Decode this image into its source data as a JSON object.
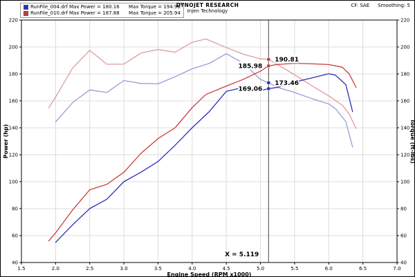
{
  "header": {
    "title": "DYNOJET RESEARCH",
    "subtitle": "Injen Technology",
    "cf_label": "CF: SAE",
    "smoothing_label": "Smoothing: 5"
  },
  "legend": {
    "items": [
      {
        "color": "#2c2cbf",
        "file": "RunFile_004.drf",
        "max_power_label": "Max Power = 180.16",
        "max_torque_label": "Max Torque = 194.96"
      },
      {
        "color": "#c83c3c",
        "file": "RunFile_010.drf",
        "max_power_label": "Max Power = 187.88",
        "max_torque_label": "Max Torque = 205.94"
      }
    ]
  },
  "chart_data": {
    "type": "line",
    "title": "DYNOJET RESEARCH - Injen Technology",
    "xlabel": "Engine Speed (RPM x1000)",
    "ylabel_left": "Power (hp)",
    "ylabel_right": "Torque (ft-lbs)",
    "xlim": [
      1.5,
      7.0
    ],
    "ylim": [
      40,
      220
    ],
    "grid": true,
    "legend_position": "top-left",
    "x_ticks": [
      "1.5",
      "2.0",
      "2.5",
      "3.0",
      "3.5",
      "4.0",
      "4.5",
      "5.0",
      "5.5",
      "6.0",
      "6.5",
      "7.0"
    ],
    "y_ticks": [
      40,
      60,
      80,
      100,
      120,
      140,
      160,
      180,
      200,
      220
    ],
    "cursor": {
      "x": 5.119,
      "label": "X = 5.119"
    },
    "series": [
      {
        "id": "torque-010",
        "name": "RunFile_010 Torque (ft-lbs)",
        "color": "#e09a9a",
        "x": [
          1.9,
          2.0,
          2.25,
          2.5,
          2.75,
          3.0,
          3.25,
          3.5,
          3.75,
          4.0,
          4.2,
          4.5,
          4.75,
          5.0,
          5.119,
          5.25,
          5.5,
          5.75,
          6.0,
          6.2,
          6.3,
          6.4
        ],
        "y": [
          154.8,
          162.8,
          184.4,
          197.5,
          187.2,
          187.3,
          195.5,
          198.1,
          196.1,
          203.5,
          205.94,
          199.6,
          194.6,
          191.2,
          190.81,
          187.0,
          179.4,
          171.3,
          163.7,
          156.7,
          150.1,
          139.5
        ]
      },
      {
        "id": "torque-004",
        "name": "RunFile_004 Torque (ft-lbs)",
        "color": "#9a9ad8",
        "x": [
          2.0,
          2.25,
          2.5,
          2.75,
          3.0,
          3.25,
          3.5,
          3.75,
          4.0,
          4.25,
          4.5,
          4.75,
          5.0,
          5.119,
          5.25,
          5.5,
          5.75,
          6.0,
          6.1,
          6.25,
          6.35
        ],
        "y": [
          144.4,
          158.7,
          168.1,
          166.2,
          175.1,
          172.9,
          172.6,
          177.9,
          183.8,
          187.8,
          194.96,
          188.0,
          175.9,
          173.46,
          170.0,
          166.2,
          161.7,
          157.7,
          154.1,
          144.6,
          125.7
        ]
      },
      {
        "id": "power-010",
        "name": "RunFile_010 Power (hp)",
        "color": "#c83c3c",
        "x": [
          1.9,
          2.0,
          2.25,
          2.5,
          2.75,
          3.0,
          3.25,
          3.5,
          3.75,
          4.0,
          4.2,
          4.5,
          4.75,
          5.0,
          5.119,
          5.25,
          5.5,
          5.75,
          6.0,
          6.2,
          6.3,
          6.4
        ],
        "y": [
          56,
          62,
          79,
          94,
          98,
          107,
          121,
          132,
          140,
          155,
          164.7,
          171,
          176,
          182,
          185.98,
          187,
          187.88,
          187.5,
          187,
          185,
          180,
          170
        ]
      },
      {
        "id": "power-004",
        "name": "RunFile_004 Power (hp)",
        "color": "#2c2cbf",
        "x": [
          2.0,
          2.25,
          2.5,
          2.75,
          3.0,
          3.25,
          3.5,
          3.75,
          4.0,
          4.25,
          4.5,
          4.75,
          5.0,
          5.119,
          5.25,
          5.5,
          5.75,
          6.0,
          6.1,
          6.25,
          6.35
        ],
        "y": [
          55,
          68,
          80,
          87,
          100,
          107,
          115,
          127,
          140,
          152,
          167,
          170,
          167.5,
          169.06,
          170,
          174,
          177,
          180.16,
          179,
          172,
          152
        ]
      }
    ],
    "markers": [
      {
        "x": 5.119,
        "value": 185.98,
        "label": "185.98",
        "color": "#c83c3c",
        "side": "left"
      },
      {
        "x": 5.119,
        "value": 190.81,
        "label": "190.81",
        "color": "#c83c3c",
        "side": "right"
      },
      {
        "x": 5.119,
        "value": 169.06,
        "label": "169.06",
        "color": "#2c2cbf",
        "side": "left"
      },
      {
        "x": 5.119,
        "value": 173.46,
        "label": "173.46",
        "color": "#2c2cbf",
        "side": "right"
      }
    ]
  }
}
